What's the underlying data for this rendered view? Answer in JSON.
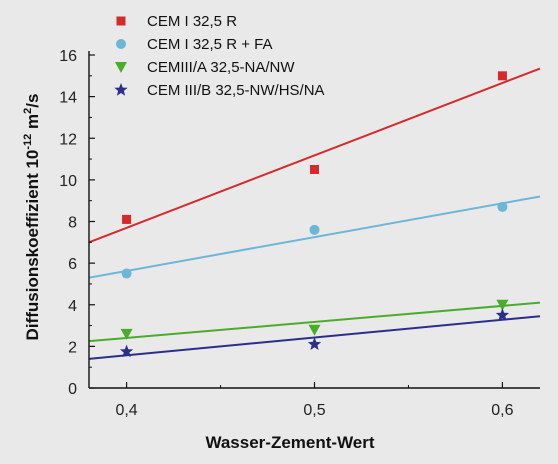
{
  "chart_data": {
    "type": "scatter",
    "xlabel": "Wasser-Zement-Wert",
    "ylabel": "Diffusionskoeffizient 10",
    "ylabel_superscript": "-12",
    "ylabel_unit_prefix": " m",
    "ylabel_unit_superscript": "2",
    "ylabel_unit_suffix": "/s",
    "xlim": [
      0.38,
      0.62
    ],
    "ylim": [
      0,
      16
    ],
    "x_ticks": [
      {
        "value": 0.4,
        "label": "0,4"
      },
      {
        "value": 0.5,
        "label": "0,5"
      },
      {
        "value": 0.6,
        "label": "0,6"
      }
    ],
    "y_ticks": [
      {
        "value": 0,
        "label": "0"
      },
      {
        "value": 2,
        "label": "2"
      },
      {
        "value": 4,
        "label": "4"
      },
      {
        "value": 6,
        "label": "6"
      },
      {
        "value": 8,
        "label": "8"
      },
      {
        "value": 10,
        "label": "10"
      },
      {
        "value": 12,
        "label": "12"
      },
      {
        "value": 14,
        "label": "14"
      },
      {
        "value": 16,
        "label": "16"
      }
    ],
    "legend_position": "top-left",
    "series": [
      {
        "name": "CEM I 32,5 R",
        "marker": "square",
        "color": "#d62a2a",
        "points": [
          {
            "x": 0.4,
            "y": 8.1
          },
          {
            "x": 0.5,
            "y": 10.5
          },
          {
            "x": 0.6,
            "y": 15.0
          }
        ],
        "fit": [
          {
            "x": 0.38,
            "y": 7.0
          },
          {
            "x": 0.62,
            "y": 15.35
          }
        ]
      },
      {
        "name": "CEM I 32,5 R + FA",
        "marker": "circle",
        "color": "#6cb6d6",
        "points": [
          {
            "x": 0.4,
            "y": 5.5
          },
          {
            "x": 0.5,
            "y": 7.6
          },
          {
            "x": 0.6,
            "y": 8.7
          }
        ],
        "fit": [
          {
            "x": 0.38,
            "y": 5.3
          },
          {
            "x": 0.62,
            "y": 9.2
          }
        ]
      },
      {
        "name": "CEMIII/A 32,5-NA/NW",
        "marker": "triangle-down",
        "color": "#47ad2b",
        "points": [
          {
            "x": 0.4,
            "y": 2.6
          },
          {
            "x": 0.5,
            "y": 2.8
          },
          {
            "x": 0.6,
            "y": 4.0
          }
        ],
        "fit": [
          {
            "x": 0.38,
            "y": 2.25
          },
          {
            "x": 0.62,
            "y": 4.1
          }
        ]
      },
      {
        "name": "CEM III/B 32,5-NW/HS/NA",
        "marker": "star",
        "color": "#2a2f8a",
        "points": [
          {
            "x": 0.4,
            "y": 1.75
          },
          {
            "x": 0.5,
            "y": 2.1
          },
          {
            "x": 0.6,
            "y": 3.5
          }
        ],
        "fit": [
          {
            "x": 0.38,
            "y": 1.4
          },
          {
            "x": 0.62,
            "y": 3.45
          }
        ]
      }
    ]
  }
}
